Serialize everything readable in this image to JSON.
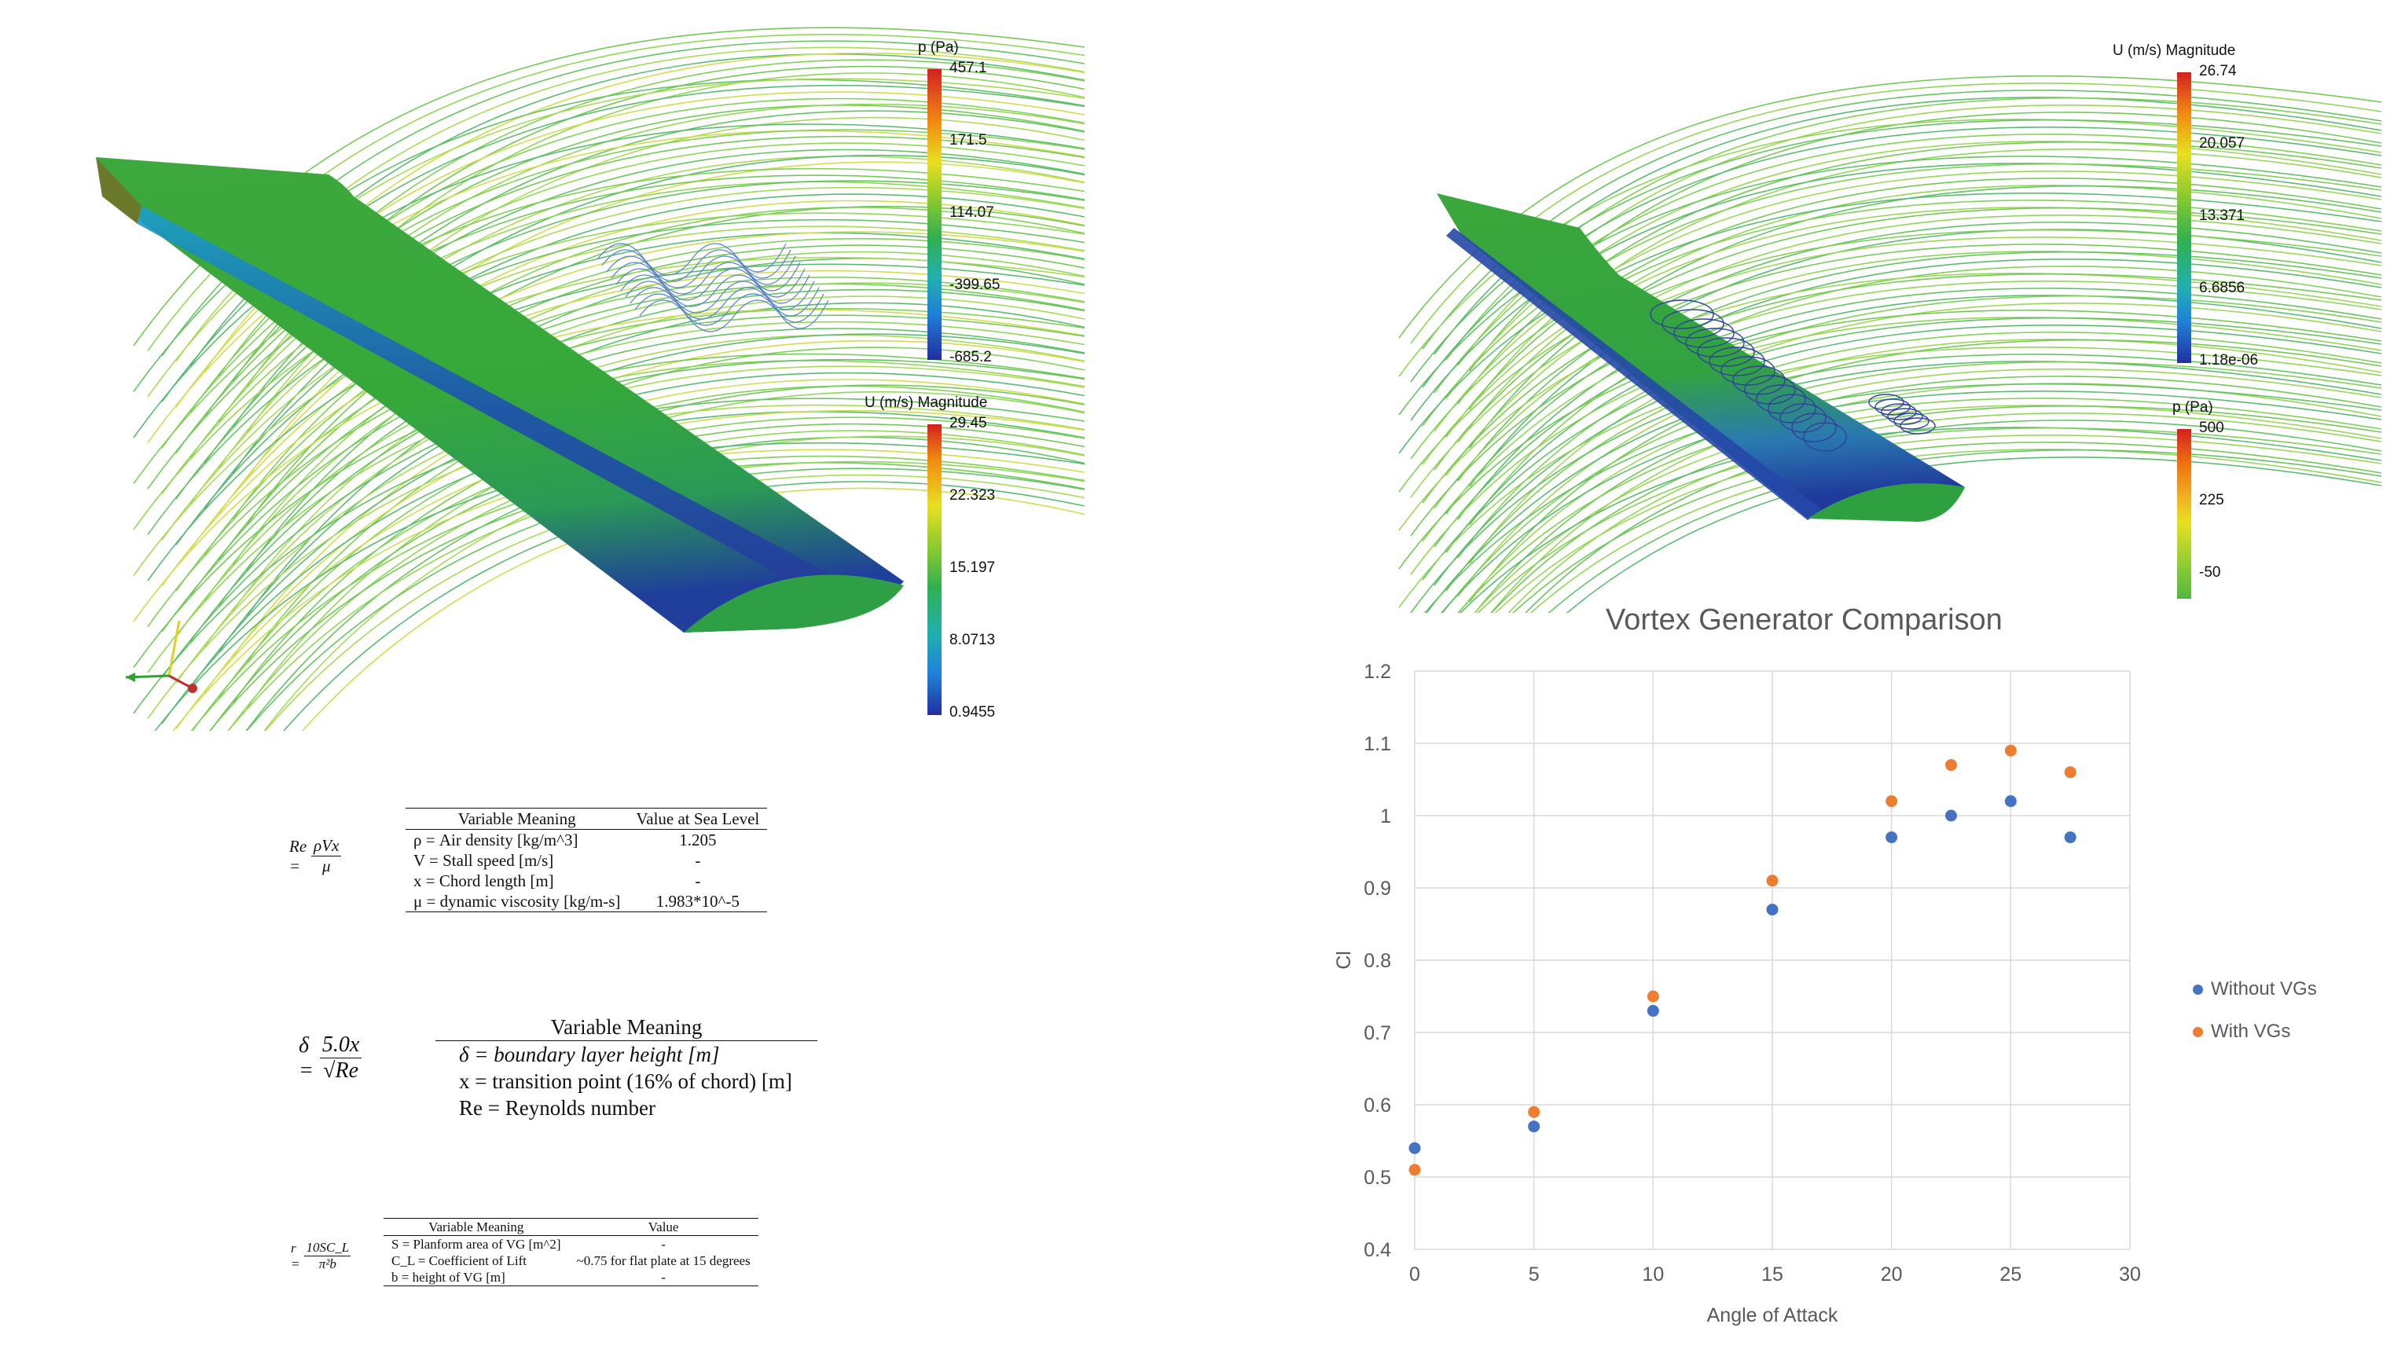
{
  "left_panel": {
    "colorbar_p": {
      "title": "p (Pa)",
      "ticks": [
        "457.1",
        "171.5",
        "114.07",
        "-399.65",
        "-685.2"
      ]
    },
    "colorbar_u": {
      "title": "U (m/s) Magnitude",
      "ticks": [
        "29.45",
        "22.323",
        "15.197",
        "8.0713",
        "0.9455"
      ]
    }
  },
  "right_panel": {
    "colorbar_u": {
      "title": "U (m/s) Magnitude",
      "ticks": [
        "26.74",
        "20.057",
        "13.371",
        "6.6856",
        "1.18e-06"
      ]
    },
    "colorbar_p": {
      "title": "p (Pa)",
      "ticks": [
        "500",
        "225",
        "-50"
      ]
    }
  },
  "equation_re": {
    "formula_lhs": "Re =",
    "formula_num": "ρVx",
    "formula_den": "μ",
    "headers": [
      "Variable Meaning",
      "Value at Sea Level"
    ],
    "rows": [
      [
        "ρ = Air density [kg/m^3]",
        "1.205"
      ],
      [
        "V = Stall speed [m/s]",
        "-"
      ],
      [
        "x = Chord length [m]",
        "-"
      ],
      [
        "μ = dynamic viscosity [kg/m-s]",
        "1.983*10^-5"
      ]
    ]
  },
  "equation_delta": {
    "formula_lhs": "δ =",
    "formula_num": "5.0x",
    "formula_den": "√Re",
    "header": "Variable Meaning",
    "rows": [
      "δ = boundary layer height [m]",
      "x = transition point (16% of chord) [m]",
      "Re = Reynolds number"
    ]
  },
  "equation_r": {
    "formula_lhs": "r =",
    "formula_num": "10SC_L",
    "formula_den": "π²b",
    "headers": [
      "Variable Meaning",
      "Value"
    ],
    "rows": [
      [
        "S = Planform area of VG [m^2]",
        "-"
      ],
      [
        "C_L = Coefficient of Lift",
        "~0.75 for flat plate at 15 degrees"
      ],
      [
        "b = height of VG [m]",
        "-"
      ]
    ]
  },
  "chart_data": {
    "type": "scatter",
    "title": "Vortex Generator Comparison",
    "xlabel": "Angle of Attack",
    "ylabel": "Cl",
    "xlim": [
      0,
      30
    ],
    "ylim": [
      0.4,
      1.2
    ],
    "xticks": [
      0,
      5,
      10,
      15,
      20,
      25,
      30
    ],
    "yticks": [
      0.4,
      0.5,
      0.6,
      0.7,
      0.8,
      0.9,
      1,
      1.1,
      1.2
    ],
    "grid": true,
    "legend_position": "right",
    "series": [
      {
        "name": "Without VGs",
        "color": "#4472C4",
        "x": [
          0,
          5,
          10,
          15,
          20,
          22.5,
          25,
          27.5
        ],
        "y": [
          0.54,
          0.57,
          0.73,
          0.87,
          0.97,
          1.0,
          1.02,
          0.97
        ]
      },
      {
        "name": "With VGs",
        "color": "#ED7D31",
        "x": [
          0,
          5,
          10,
          15,
          20,
          22.5,
          25,
          27.5
        ],
        "y": [
          0.51,
          0.59,
          0.75,
          0.91,
          1.02,
          1.07,
          1.09,
          1.06
        ]
      }
    ]
  }
}
